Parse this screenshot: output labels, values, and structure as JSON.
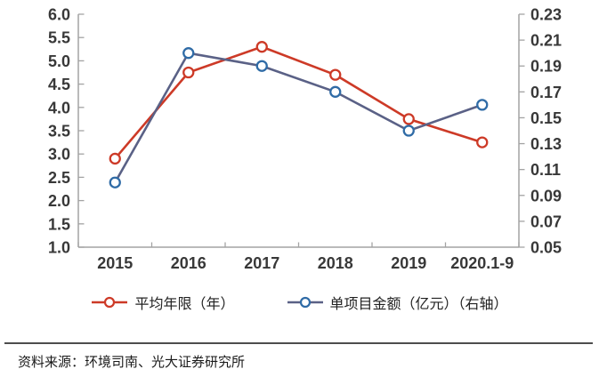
{
  "chart_data": {
    "type": "line",
    "categories": [
      "2015",
      "2016",
      "2017",
      "2018",
      "2019",
      "2020.1-9"
    ],
    "series": [
      {
        "name": "平均年限（年）",
        "axis": "left",
        "values": [
          2.9,
          4.75,
          5.3,
          4.7,
          3.75,
          3.25
        ],
        "line_color": "#cd3a27",
        "marker_color": "#cd3a27"
      },
      {
        "name": "单项目金额（亿元）（右轴）",
        "axis": "right",
        "values": [
          0.1,
          0.2,
          0.19,
          0.17,
          0.14,
          0.16
        ],
        "line_color": "#5a6186",
        "marker_color": "#2f6ba6"
      }
    ],
    "left_axis": {
      "ticks": [
        "6.0",
        "5.5",
        "5.0",
        "4.5",
        "4.0",
        "3.5",
        "3.0",
        "2.5",
        "2.0",
        "1.5",
        "1.0"
      ],
      "min": 1.0,
      "max": 6.0
    },
    "right_axis": {
      "ticks": [
        "0.23",
        "0.21",
        "0.19",
        "0.17",
        "0.15",
        "0.13",
        "0.11",
        "0.09",
        "0.07",
        "0.05"
      ],
      "min": 0.05,
      "max": 0.23
    },
    "title": "",
    "xlabel": "",
    "ylabel": "",
    "grid": false,
    "legend_position": "bottom",
    "marker": "circle"
  },
  "colors": {
    "axis": "#a3a3a3",
    "tick_label": "#383838",
    "separator": "#4d4d4d",
    "source_text": "#1a1a1a"
  },
  "source_note": "资料来源：环境司南、光大证券研究所"
}
